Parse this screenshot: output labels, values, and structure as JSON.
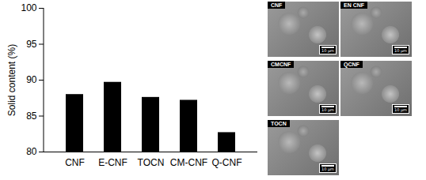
{
  "chart_data": {
    "type": "bar",
    "categories": [
      "CNF",
      "E-CNF",
      "TOCN",
      "CM-CNF",
      "Q-CNF"
    ],
    "values": [
      88.0,
      89.7,
      87.6,
      87.2,
      82.7
    ],
    "color": "#000000",
    "y_label": "Solid content (%)",
    "ylim": [
      80,
      100
    ],
    "yticks": [
      80,
      85,
      90,
      95,
      100
    ],
    "grid": false
  },
  "images": [
    {
      "label": "CNF",
      "scale_bar": "10 μm"
    },
    {
      "label": "EN CNF",
      "scale_bar": "10 μm"
    },
    {
      "label": "CMCNF",
      "scale_bar": "10 μm"
    },
    {
      "label": "QCNF",
      "scale_bar": "10 μm"
    },
    {
      "label": "TOCN",
      "scale_bar": "10 μm"
    }
  ]
}
